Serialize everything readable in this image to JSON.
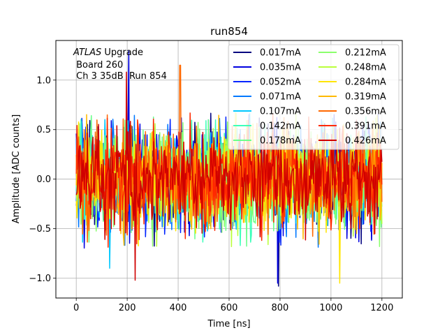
{
  "chart_data": {
    "type": "line",
    "title": "run854",
    "xlabel": "Time [ns]",
    "ylabel": "Amplitude [ADC counts]",
    "xlim": [
      -80,
      1280
    ],
    "ylim": [
      -1.2,
      1.4
    ],
    "xticks": [
      0,
      200,
      400,
      600,
      800,
      1000,
      1200
    ],
    "xtick_labels": [
      "0",
      "200",
      "400",
      "600",
      "800",
      "1000",
      "1200"
    ],
    "yticks": [
      -1.0,
      -0.5,
      0.0,
      0.5,
      1.0
    ],
    "ytick_labels": [
      "−1.0",
      "−0.5",
      "0.0",
      "0.5",
      "1.0"
    ],
    "grid": true,
    "legend_position": "top-right",
    "legend_columns": 2,
    "annotation": {
      "line1_italic": "ATLAS",
      "line1_rest": " Upgrade",
      "line2": " Board 260",
      "line3": " Ch 3 35dB  Run 854"
    },
    "x_range": [
      0,
      1200
    ],
    "sample_step_ns": 3.125,
    "noise_envelope": {
      "typical_min": -0.55,
      "typical_max": 0.55
    },
    "series": [
      {
        "name": "0.017mA",
        "color": "#00007f",
        "spikes": [
          [
            795,
            -1.08
          ]
        ]
      },
      {
        "name": "0.035mA",
        "color": "#0000e0",
        "spikes": [
          [
            205,
            1.3
          ],
          [
            790,
            -1.05
          ]
        ]
      },
      {
        "name": "0.052mA",
        "color": "#0024ff",
        "spikes": []
      },
      {
        "name": "0.071mA",
        "color": "#0078ff",
        "spikes": []
      },
      {
        "name": "0.107mA",
        "color": "#00c8ff",
        "spikes": [
          [
            130,
            -0.9
          ]
        ]
      },
      {
        "name": "0.142mA",
        "color": "#3dffba",
        "spikes": []
      },
      {
        "name": "0.178mA",
        "color": "#6bff8b",
        "spikes": []
      },
      {
        "name": "0.212mA",
        "color": "#8aff6c",
        "spikes": []
      },
      {
        "name": "0.248mA",
        "color": "#baff3c",
        "spikes": []
      },
      {
        "name": "0.284mA",
        "color": "#ffe500",
        "spikes": [
          [
            1035,
            -1.05
          ]
        ]
      },
      {
        "name": "0.319mA",
        "color": "#ffb900",
        "spikes": []
      },
      {
        "name": "0.356mA",
        "color": "#ff6800",
        "spikes": [
          [
            408,
            1.15
          ]
        ]
      },
      {
        "name": "0.391mA",
        "color": "#ff2900",
        "spikes": []
      },
      {
        "name": "0.426mA",
        "color": "#d00000",
        "spikes": [
          [
            198,
            1.08
          ],
          [
            232,
            -1.02
          ]
        ]
      }
    ]
  }
}
